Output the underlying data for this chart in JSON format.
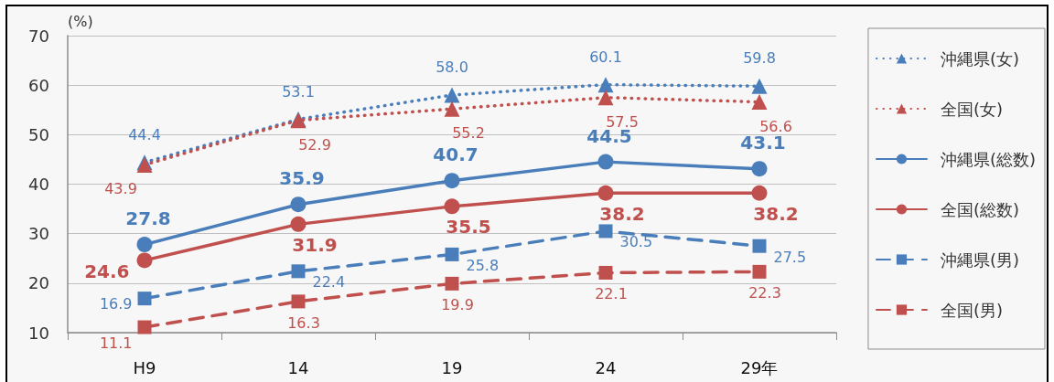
{
  "chart_data": {
    "type": "line",
    "ylabel": "(%)",
    "categories": [
      "H9",
      "14",
      "19",
      "24",
      "29年"
    ],
    "series": [
      {
        "name": "沖縄県(女)",
        "color": "#4a7ebb",
        "line_style": "dotted",
        "marker": "triangle",
        "values": [
          44.4,
          53.1,
          58.0,
          60.1,
          59.8
        ],
        "value_labels": [
          "44.4",
          "53.1",
          "58.0",
          "60.1",
          "59.8"
        ]
      },
      {
        "name": "全国(女)",
        "color": "#c0504d",
        "line_style": "dotted",
        "marker": "triangle",
        "values": [
          43.9,
          52.9,
          55.2,
          57.5,
          56.6
        ],
        "value_labels": [
          "43.9",
          "52.9",
          "55.2",
          "57.5",
          "56.6"
        ]
      },
      {
        "name": "沖縄県(総数)",
        "color": "#4a7ebb",
        "line_style": "solid",
        "marker": "circle",
        "values": [
          27.8,
          35.9,
          40.7,
          44.5,
          43.1
        ],
        "value_labels": [
          "27.8",
          "35.9",
          "40.7",
          "44.5",
          "43.1"
        ]
      },
      {
        "name": "全国(総数)",
        "color": "#c0504d",
        "line_style": "solid",
        "marker": "circle",
        "values": [
          24.6,
          31.9,
          35.5,
          38.2,
          38.2
        ],
        "value_labels": [
          "24.6",
          "31.9",
          "35.5",
          "38.2",
          "38.2"
        ]
      },
      {
        "name": "沖縄県(男)",
        "color": "#4a7ebb",
        "line_style": "dashed",
        "marker": "square",
        "values": [
          16.9,
          22.4,
          25.8,
          30.5,
          27.5
        ],
        "value_labels": [
          "16.9",
          "22.4",
          "25.8",
          "30.5",
          "27.5"
        ]
      },
      {
        "name": "全国(男)",
        "color": "#c0504d",
        "line_style": "dashed",
        "marker": "square",
        "values": [
          11.1,
          16.3,
          19.9,
          22.1,
          22.3
        ],
        "value_labels": [
          "11.1",
          "16.3",
          "19.9",
          "22.1",
          "22.3"
        ]
      }
    ],
    "ylim": [
      10,
      70
    ],
    "yticks": [
      10,
      20,
      30,
      40,
      50,
      60,
      70
    ],
    "grid": "y",
    "legend": "right"
  }
}
